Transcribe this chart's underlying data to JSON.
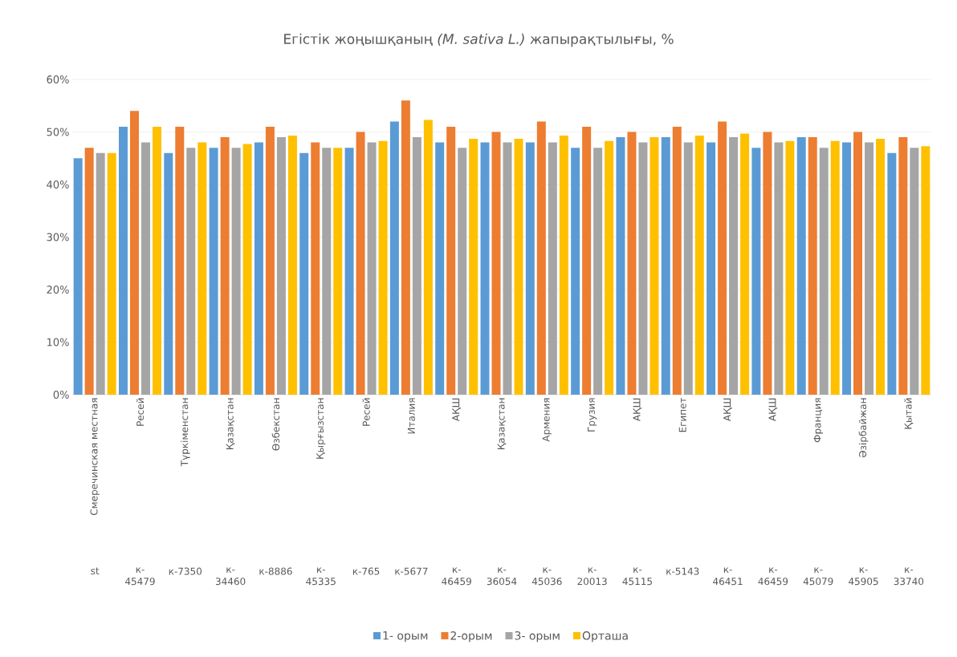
{
  "chart_data": {
    "type": "bar",
    "title": "Егістік жоңышқаның *(M. sativa L.)* жапырақтылығы, %",
    "categories": [
      "Смеречинская местная",
      "Ресей",
      "Түркіменстан",
      "Қазақстан",
      "Өзбекстан",
      "Қырғызстан",
      "Ресей",
      "Италия",
      "АҚШ",
      "Қазақстан",
      "Армения",
      "Грузия",
      "АҚШ",
      "Египет",
      "АҚШ",
      "АҚШ",
      "Франция",
      "Әзірбайжан",
      "Қытай"
    ],
    "annotations": [
      "st",
      "к-45479",
      "к-7350",
      "к-34460",
      "к-8886",
      "к-45335",
      "к-765",
      "к-5677",
      "к-46459",
      "к-36054",
      "к-45036",
      "к-20013",
      "к-45115",
      "к-5143",
      "к-46451",
      "к-46459",
      "к-45079",
      "к-45905",
      "к-33740"
    ],
    "series": [
      {
        "name": "1- орым",
        "color": "#5b9bd5",
        "values": [
          45,
          51,
          46,
          47,
          48,
          46,
          47,
          52,
          48,
          48,
          48,
          47,
          49,
          49,
          48,
          47,
          49,
          48,
          46
        ]
      },
      {
        "name": "2-орым",
        "color": "#ed7d31",
        "values": [
          47,
          54,
          51,
          49,
          51,
          48,
          50,
          56,
          51,
          50,
          52,
          51,
          50,
          51,
          52,
          50,
          49,
          50,
          49
        ]
      },
      {
        "name": "3- орым",
        "color": "#a5a5a5",
        "values": [
          46,
          48,
          47,
          47,
          49,
          47,
          48,
          49,
          47,
          48,
          48,
          47,
          48,
          48,
          49,
          48,
          47,
          48,
          47
        ]
      },
      {
        "name": "Орташа",
        "color": "#ffc000",
        "values": [
          46,
          51,
          48,
          47.7,
          49.3,
          47,
          48.3,
          52.3,
          48.7,
          48.7,
          49.3,
          48.3,
          49,
          49.3,
          49.7,
          48.3,
          48.3,
          48.7,
          47.3
        ]
      }
    ],
    "ylim": [
      0,
      60
    ],
    "yticks": [
      {
        "value": 0,
        "label": "0%"
      },
      {
        "value": 10,
        "label": "10%"
      },
      {
        "value": 20,
        "label": "20%"
      },
      {
        "value": 30,
        "label": "30%"
      },
      {
        "value": 40,
        "label": "40%"
      },
      {
        "value": 50,
        "label": "50%"
      },
      {
        "value": 60,
        "label": "60%"
      }
    ],
    "grid": "y",
    "legend": "bottom"
  }
}
